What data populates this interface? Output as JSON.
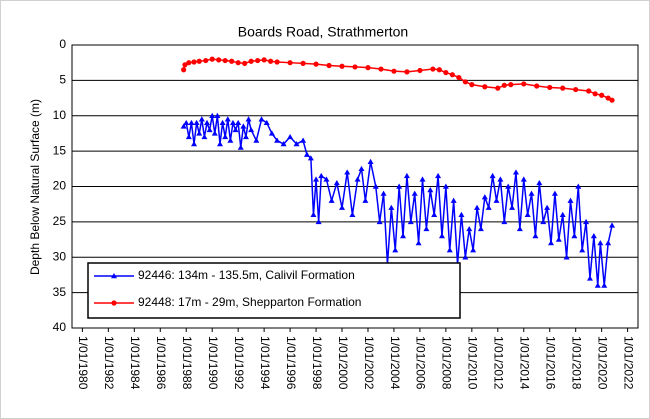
{
  "chart_data": {
    "type": "line",
    "title": "Boards Road, Strathmerton",
    "y_label": "Depth Below Natural Surface (m)",
    "xlim": [
      1979.2,
      2022.8
    ],
    "ylim": [
      0,
      40
    ],
    "y_reversed": true,
    "grid": true,
    "legend": "lower left",
    "yticks": [
      0,
      5,
      10,
      15,
      20,
      25,
      30,
      35,
      40
    ],
    "xticks": [
      {
        "value": 1980,
        "label": "1/01/1980"
      },
      {
        "value": 1982,
        "label": "1/01/1982"
      },
      {
        "value": 1984,
        "label": "1/01/1984"
      },
      {
        "value": 1986,
        "label": "1/01/1986"
      },
      {
        "value": 1988,
        "label": "1/01/1988"
      },
      {
        "value": 1990,
        "label": "1/01/1990"
      },
      {
        "value": 1992,
        "label": "1/01/1992"
      },
      {
        "value": 1994,
        "label": "1/01/1994"
      },
      {
        "value": 1996,
        "label": "1/01/1996"
      },
      {
        "value": 1998,
        "label": "1/01/1998"
      },
      {
        "value": 2000,
        "label": "1/01/2000"
      },
      {
        "value": 2002,
        "label": "1/01/2002"
      },
      {
        "value": 2004,
        "label": "1/01/2004"
      },
      {
        "value": 2006,
        "label": "1/01/2006"
      },
      {
        "value": 2008,
        "label": "1/01/2008"
      },
      {
        "value": 2010,
        "label": "1/01/2010"
      },
      {
        "value": 2012,
        "label": "1/01/2012"
      },
      {
        "value": 2014,
        "label": "1/01/2014"
      },
      {
        "value": 2016,
        "label": "1/01/2016"
      },
      {
        "value": 2018,
        "label": "1/01/2018"
      },
      {
        "value": 2020,
        "label": "1/01/2020"
      },
      {
        "value": 2022,
        "label": "1/01/2022"
      }
    ],
    "series": [
      {
        "name": "92446: 134m - 135.5m, Calivil Formation",
        "color": "#0000ff",
        "marker": "triangle",
        "x": [
          1987.8,
          1988.0,
          1988.2,
          1988.4,
          1988.6,
          1988.8,
          1989.0,
          1989.2,
          1989.4,
          1989.6,
          1989.8,
          1990.0,
          1990.2,
          1990.4,
          1990.6,
          1990.8,
          1991.0,
          1991.2,
          1991.4,
          1991.6,
          1991.8,
          1992.0,
          1992.2,
          1992.4,
          1992.6,
          1992.8,
          1993.0,
          1993.4,
          1993.8,
          1994.2,
          1994.6,
          1995.0,
          1995.5,
          1996.0,
          1996.5,
          1997.0,
          1997.3,
          1997.6,
          1997.8,
          1998.0,
          1998.2,
          1998.4,
          1998.8,
          1999.2,
          1999.6,
          2000.0,
          2000.4,
          2000.8,
          2001.2,
          2001.5,
          2001.8,
          2002.2,
          2002.6,
          2002.9,
          2003.2,
          2003.5,
          2003.8,
          2004.1,
          2004.4,
          2004.7,
          2005.0,
          2005.3,
          2005.6,
          2005.9,
          2006.2,
          2006.5,
          2006.8,
          2007.1,
          2007.4,
          2007.7,
          2008.0,
          2008.3,
          2008.6,
          2008.9,
          2009.2,
          2009.5,
          2009.8,
          2010.1,
          2010.4,
          2010.7,
          2011.0,
          2011.3,
          2011.6,
          2011.9,
          2012.2,
          2012.5,
          2012.8,
          2013.1,
          2013.4,
          2013.7,
          2014.0,
          2014.3,
          2014.6,
          2014.9,
          2015.2,
          2015.5,
          2015.8,
          2016.1,
          2016.4,
          2016.7,
          2017.0,
          2017.3,
          2017.6,
          2017.9,
          2018.2,
          2018.5,
          2018.8,
          2019.1,
          2019.4,
          2019.7,
          2019.9,
          2020.2,
          2020.5,
          2020.8
        ],
        "values": [
          11.5,
          11,
          13,
          11,
          14,
          11,
          12.5,
          10.5,
          13,
          11,
          12,
          10,
          12.5,
          10,
          14,
          11,
          13,
          10.5,
          13.5,
          11,
          12,
          11,
          14.5,
          11.5,
          13,
          10.5,
          12,
          13.5,
          10.5,
          11,
          12.5,
          13.5,
          14,
          13,
          14,
          13.5,
          15.5,
          16,
          24,
          19,
          25,
          18.5,
          19,
          22,
          19.5,
          23,
          18,
          24,
          19,
          17.5,
          22,
          16.5,
          20,
          25,
          21,
          31,
          23,
          29,
          20,
          27,
          18.5,
          25,
          21,
          28,
          19,
          26,
          20.5,
          24,
          18.5,
          27,
          20,
          29,
          22,
          31,
          24,
          30,
          26,
          29,
          23,
          26,
          21.5,
          23,
          18.5,
          22,
          19,
          25,
          20,
          23,
          18,
          26,
          19,
          24,
          21,
          27,
          19.5,
          25,
          23,
          28,
          21,
          27.5,
          24,
          30,
          22,
          27,
          20,
          29,
          25,
          33,
          27,
          34,
          28,
          34,
          28,
          25.5
        ]
      },
      {
        "name": "92448: 17m - 29m, Shepparton Formation",
        "color": "#ff0000",
        "marker": "circle",
        "x": [
          1987.8,
          1987.9,
          1988.2,
          1988.6,
          1989,
          1989.5,
          1990,
          1990.5,
          1991,
          1991.5,
          1992,
          1992.5,
          1993,
          1993.5,
          1994,
          1994.5,
          1995,
          1996,
          1997,
          1998,
          1999,
          2000,
          2001,
          2002,
          2003,
          2004,
          2005,
          2006,
          2007,
          2007.5,
          2008,
          2008.5,
          2009,
          2009.5,
          2010,
          2011,
          2012,
          2012.5,
          2013,
          2014,
          2015,
          2016,
          2017,
          2018,
          2019,
          2019.5,
          2020,
          2020.5,
          2020.8
        ],
        "values": [
          3.5,
          2.8,
          2.5,
          2.4,
          2.3,
          2.2,
          2.0,
          2.1,
          2.2,
          2.3,
          2.5,
          2.6,
          2.3,
          2.2,
          2.1,
          2.3,
          2.4,
          2.5,
          2.6,
          2.7,
          2.9,
          3.0,
          3.1,
          3.2,
          3.4,
          3.7,
          3.8,
          3.6,
          3.4,
          3.5,
          3.9,
          4.2,
          4.6,
          5.2,
          5.6,
          5.9,
          6.1,
          5.7,
          5.6,
          5.5,
          5.8,
          6.0,
          6.1,
          6.3,
          6.5,
          6.9,
          7.1,
          7.5,
          7.8
        ]
      }
    ]
  }
}
